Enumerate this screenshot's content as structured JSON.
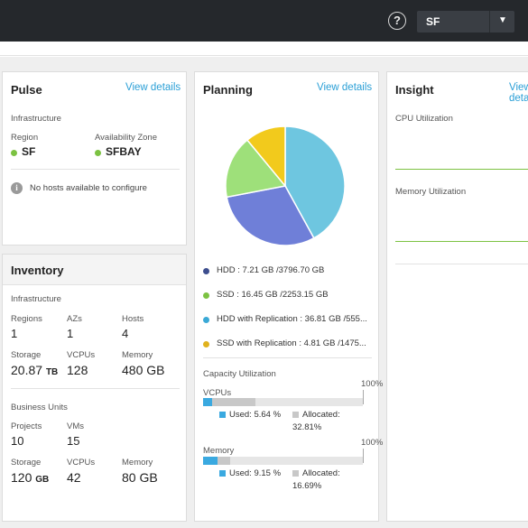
{
  "header": {
    "help_icon": "help-circle-icon",
    "region_select": {
      "selected": "SF",
      "icon": "caret-down-icon"
    }
  },
  "pulse": {
    "title": "Pulse",
    "link": "View details",
    "section": "Infrastructure",
    "region": {
      "label": "Region",
      "value": "SF",
      "color": "#7cc242"
    },
    "az": {
      "label": "Availability Zone",
      "value": "SFBAY",
      "color": "#7cc242"
    },
    "notice": {
      "icon": "info-icon",
      "text": "No hosts available to configure"
    }
  },
  "inventory": {
    "title": "Inventory",
    "infrastructure": {
      "section": "Infrastructure",
      "regions": {
        "label": "Regions",
        "value": "1"
      },
      "azs": {
        "label": "AZs",
        "value": "1"
      },
      "hosts": {
        "label": "Hosts",
        "value": "4"
      },
      "storage": {
        "label": "Storage",
        "value": "20.87",
        "unit": "TB"
      },
      "vcpus": {
        "label": "VCPUs",
        "value": "128"
      },
      "memory": {
        "label": "Memory",
        "value": "480 GB"
      }
    },
    "business": {
      "section": "Business Units",
      "projects": {
        "label": "Projects",
        "value": "10"
      },
      "vms": {
        "label": "VMs",
        "value": "15"
      },
      "storage": {
        "label": "Storage",
        "value": "120",
        "unit": "GB"
      },
      "vcpus": {
        "label": "VCPUs",
        "value": "42"
      },
      "memory": {
        "label": "Memory",
        "value": "80 GB"
      }
    }
  },
  "planning": {
    "title": "Planning",
    "link": "View details",
    "legend": [
      {
        "text": "HDD : 7.21 GB /3796.70 GB",
        "color": "#3d4e8e"
      },
      {
        "text": "SSD : 16.45 GB /2253.15 GB",
        "color": "#7cc242"
      },
      {
        "text": "HDD with Replication : 36.81 GB /555...",
        "color": "#3aa9d6"
      },
      {
        "text": "SSD with Replication : 4.81 GB /1475...",
        "color": "#e0b21e"
      }
    ],
    "pie": [
      {
        "name": "HDD with Replication",
        "value": 42,
        "color": "#6ec6e0"
      },
      {
        "name": "HDD",
        "value": 30,
        "color": "#6f7fd8"
      },
      {
        "name": "SSD",
        "value": 17,
        "color": "#9ee07a"
      },
      {
        "name": "SSD with Replication",
        "value": 11,
        "color": "#f2ca1c"
      }
    ],
    "capacity": {
      "title": "Capacity Utilization",
      "vcpus": {
        "label": "VCPUs",
        "max": "100%",
        "used_label": "Used: 5.64 %",
        "alloc_label": "Allocated:",
        "alloc_value": "32.81%",
        "used_pct": 5.64,
        "alloc_pct": 32.81
      },
      "memory": {
        "label": "Memory",
        "max": "100%",
        "used_label": "Used: 9.15 %",
        "alloc_label": "Allocated:",
        "alloc_value": "16.69%",
        "used_pct": 9.15,
        "alloc_pct": 16.69
      }
    },
    "colors": {
      "used": "#3aa9e0",
      "allocated": "#c8c8c8"
    }
  },
  "insight": {
    "title": "Insight",
    "link": "View details",
    "cpu": "CPU Utilization",
    "memory": "Memory Utilization",
    "line_color": "#7cc242"
  }
}
